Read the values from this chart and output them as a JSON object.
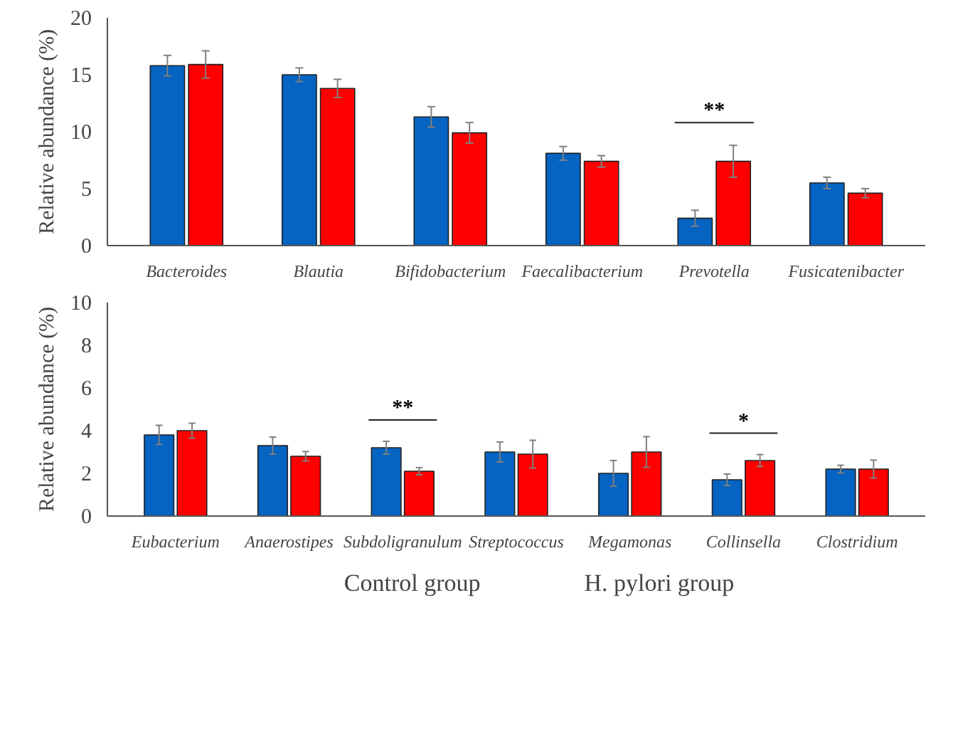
{
  "chart_data": [
    {
      "type": "bar",
      "ylabel": "Relative abundance (%)",
      "categories": [
        "Bacteroides",
        "Blautia",
        "Bifidobacterium",
        "Faecalibacterium",
        "Prevotella",
        "Fusicatenibacter"
      ],
      "series": [
        {
          "color": "#0563c1",
          "values": [
            15.8,
            15.0,
            11.3,
            8.1,
            2.4,
            5.5
          ],
          "errors": [
            0.9,
            0.6,
            0.9,
            0.6,
            0.7,
            0.5
          ]
        },
        {
          "color": "#ff0000",
          "values": [
            15.9,
            13.8,
            9.9,
            7.4,
            7.4,
            4.6
          ],
          "errors": [
            1.2,
            0.8,
            0.9,
            0.5,
            1.4,
            0.4
          ]
        }
      ],
      "ylim": [
        0,
        20
      ],
      "yticks": [
        0,
        5,
        10,
        15,
        20
      ],
      "grid": false,
      "annotations": [
        "**"
      ]
    },
    {
      "type": "bar",
      "ylabel": "Relative abundance (%)",
      "categories": [
        "Eubacterium",
        "Anaerostipes",
        "Subdoligranulum",
        "Streptococcus",
        "Megamonas",
        "Collinsella",
        "Clostridium"
      ],
      "series": [
        {
          "name": "Control group",
          "color": "#0563c1",
          "values": [
            3.8,
            3.3,
            3.2,
            3.0,
            2.0,
            1.7,
            2.2
          ],
          "errors": [
            0.45,
            0.4,
            0.3,
            0.47,
            0.6,
            0.27,
            0.18
          ]
        },
        {
          "name": "H. pylori group",
          "color": "#ff0000",
          "values": [
            4.0,
            2.8,
            2.1,
            2.9,
            3.0,
            2.6,
            2.2
          ],
          "errors": [
            0.35,
            0.22,
            0.17,
            0.65,
            0.72,
            0.28,
            0.42
          ]
        }
      ],
      "ylim": [
        0,
        10
      ],
      "yticks": [
        0,
        2,
        4,
        6,
        8,
        10
      ],
      "grid": false,
      "legend": "bottom",
      "annotations": [
        "**",
        "*"
      ]
    }
  ]
}
